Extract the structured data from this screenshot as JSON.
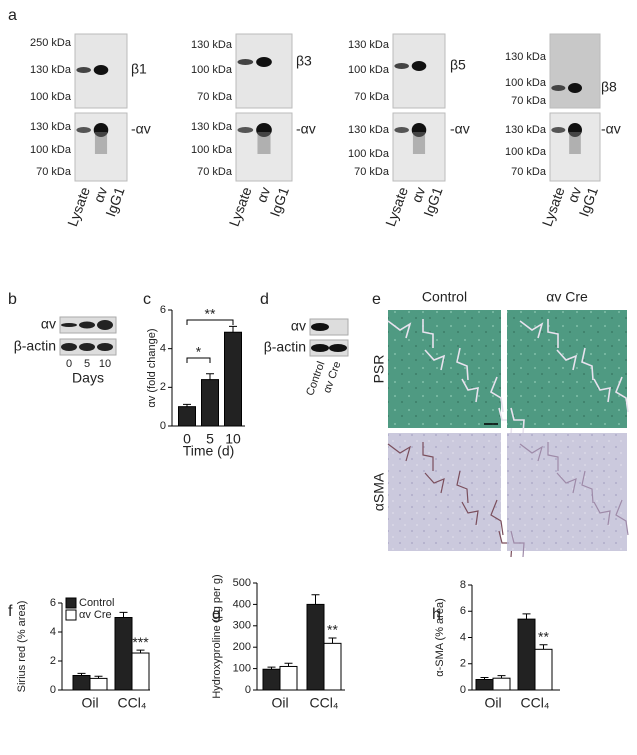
{
  "panel_a": {
    "label": "a",
    "blots": [
      {
        "top": {
          "markers": [
            "250 kDa",
            "130 kDa",
            "100 kDa"
          ],
          "band": "β1"
        },
        "bottom": {
          "markers": [
            "130 kDa",
            "100 kDa",
            "70 kDa"
          ],
          "band": "-αv"
        },
        "lanes": [
          "Lysate",
          "αv",
          "IgG1"
        ]
      },
      {
        "top": {
          "markers": [
            "130 kDa",
            "100 kDa",
            "70 kDa"
          ],
          "band": "β3"
        },
        "bottom": {
          "markers": [
            "130 kDa",
            "100 kDa",
            "70 kDa"
          ],
          "band": "-αv"
        },
        "lanes": [
          "Lysate",
          "αv",
          "IgG1"
        ]
      },
      {
        "top": {
          "markers": [
            "130 kDa",
            "100 kDa",
            "70 kDa"
          ],
          "band": "β5"
        },
        "bottom": {
          "markers": [
            "130 kDa",
            "100 kDa",
            "70 kDa"
          ],
          "band": "-αv"
        },
        "lanes": [
          "Lysate",
          "αv",
          "IgG1"
        ]
      },
      {
        "top": {
          "markers": [
            "130 kDa",
            "100 kDa",
            "70 kDa"
          ],
          "band": "β8"
        },
        "bottom": {
          "markers": [
            "130 kDa",
            "100 kDa",
            "70 kDa"
          ],
          "band": "-αv"
        },
        "lanes": [
          "Lysate",
          "αv",
          "IgG1"
        ]
      }
    ]
  },
  "panel_b": {
    "label": "b",
    "rows": [
      "αv",
      "β-actin"
    ],
    "lanes": [
      "0",
      "5",
      "10"
    ],
    "axis_label": "Days"
  },
  "panel_d": {
    "label": "d",
    "rows": [
      "αv",
      "β-actin"
    ],
    "lanes": [
      "Control",
      "αv Cre"
    ]
  },
  "panel_e": {
    "label": "e",
    "columns": [
      "Control",
      "αv Cre"
    ],
    "rows": [
      "PSR",
      "αSMA"
    ]
  },
  "chart_data": [
    {
      "type": "bar",
      "panel": "c",
      "categories": [
        "0",
        "5",
        "10"
      ],
      "values": [
        1.0,
        2.4,
        4.85
      ],
      "errors": [
        0.12,
        0.3,
        0.3
      ],
      "color": "#222222",
      "x_label": "Time (d)",
      "y_label": "αv (fold change)",
      "ylim": [
        0,
        6
      ],
      "yticks": [
        0,
        2,
        4,
        6
      ],
      "annotations": [
        {
          "text": "*",
          "between": [
            "0",
            "5"
          ]
        },
        {
          "text": "**",
          "between": [
            "0",
            "10"
          ]
        }
      ]
    },
    {
      "type": "bar",
      "panel": "f",
      "categories": [
        "Oil",
        "CCl₄"
      ],
      "y_label": "Sirius red (% area)",
      "ylim": [
        0,
        6
      ],
      "yticks": [
        0,
        2,
        4,
        6
      ],
      "series": [
        {
          "name": "Control",
          "color": "#222222",
          "values": [
            1.0,
            5.0
          ],
          "errors": [
            0.15,
            0.35
          ]
        },
        {
          "name": "αv Cre",
          "color": "#ffffff",
          "values": [
            0.8,
            2.55
          ],
          "errors": [
            0.15,
            0.2
          ]
        }
      ],
      "annotations": [
        {
          "text": "***",
          "category": "CCl₄"
        }
      ]
    },
    {
      "type": "bar",
      "panel": "g",
      "categories": [
        "Oil",
        "CCl₄"
      ],
      "y_label": "Hydroxyproline (μg per g)",
      "ylim": [
        0,
        500
      ],
      "yticks": [
        0,
        100,
        200,
        300,
        400,
        500
      ],
      "series": [
        {
          "color": "#222222",
          "values": [
            97,
            400
          ],
          "errors": [
            10,
            45
          ]
        },
        {
          "color": "#ffffff",
          "values": [
            110,
            218
          ],
          "errors": [
            15,
            25
          ]
        }
      ],
      "annotations": [
        {
          "text": "**",
          "category": "CCl₄"
        }
      ]
    },
    {
      "type": "bar",
      "panel": "h",
      "categories": [
        "Oil",
        "CCl₄"
      ],
      "y_label": "α-SMA (% area)",
      "ylim": [
        0,
        8
      ],
      "yticks": [
        0,
        2,
        4,
        6,
        8
      ],
      "series": [
        {
          "color": "#222222",
          "values": [
            0.8,
            5.4
          ],
          "errors": [
            0.15,
            0.4
          ]
        },
        {
          "color": "#ffffff",
          "values": [
            0.9,
            3.1
          ],
          "errors": [
            0.2,
            0.35
          ]
        }
      ],
      "annotations": [
        {
          "text": "**",
          "category": "CCl₄"
        }
      ]
    }
  ]
}
